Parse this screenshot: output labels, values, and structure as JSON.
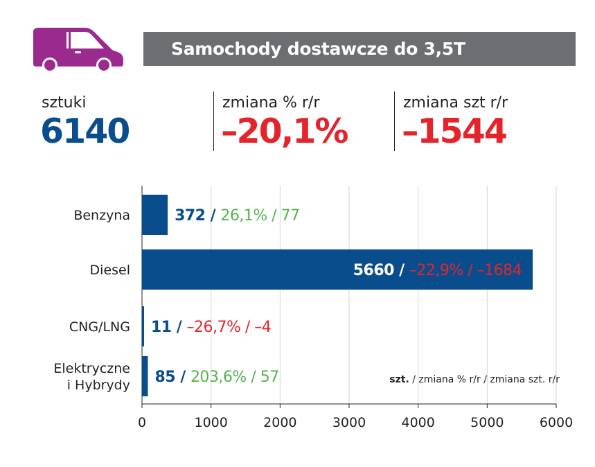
{
  "header": {
    "title": "Samochody dostawcze do 3,5T",
    "van_icon": "van-icon"
  },
  "stats": [
    {
      "label": "sztuki",
      "value": "6140",
      "color": "#0a4d8c"
    },
    {
      "label": "zmiana % r/r",
      "value": "–20,1%",
      "color": "#e3242b"
    },
    {
      "label": "zmiana szt r/r",
      "value": "–1544",
      "color": "#e3242b"
    }
  ],
  "colors": {
    "bar": "#0a4d8c",
    "positive": "#56b34a",
    "negative": "#e3242b",
    "van": "#9b2a8f",
    "banner": "#6d6e71"
  },
  "chart_data": {
    "type": "bar",
    "orientation": "horizontal",
    "categories": [
      "Benzyna",
      "Diesel",
      "CNG/LNG",
      "Elektryczne i Hybrydy"
    ],
    "values": [
      372,
      5660,
      11,
      85
    ],
    "change_pct": [
      "26,1%",
      "–22,9%",
      "–26,7%",
      "203,6%"
    ],
    "change_units": [
      "77",
      "–1684",
      "–4",
      "57"
    ],
    "trend": [
      "up",
      "down",
      "down",
      "up"
    ],
    "xlim": [
      0,
      6000
    ],
    "xticks": [
      0,
      1000,
      2000,
      3000,
      4000,
      5000,
      6000
    ],
    "grid": true,
    "legend": {
      "bold": "szt.",
      "rest": " / zmiana % r/r / zmiana szt. r/r"
    }
  }
}
